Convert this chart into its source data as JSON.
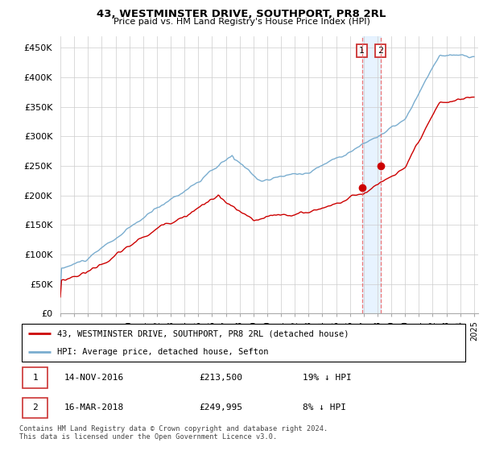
{
  "title": "43, WESTMINSTER DRIVE, SOUTHPORT, PR8 2RL",
  "subtitle": "Price paid vs. HM Land Registry's House Price Index (HPI)",
  "ylabel_ticks": [
    "£0",
    "£50K",
    "£100K",
    "£150K",
    "£200K",
    "£250K",
    "£300K",
    "£350K",
    "£400K",
    "£450K"
  ],
  "ytick_values": [
    0,
    50000,
    100000,
    150000,
    200000,
    250000,
    300000,
    350000,
    400000,
    450000
  ],
  "ylim": [
    0,
    470000
  ],
  "xlim_start": 1995.0,
  "xlim_end": 2025.3,
  "legend1": "43, WESTMINSTER DRIVE, SOUTHPORT, PR8 2RL (detached house)",
  "legend2": "HPI: Average price, detached house, Sefton",
  "red_color": "#cc0000",
  "blue_color": "#7AADCF",
  "marker1_date": 2016.87,
  "marker1_value": 213500,
  "marker2_date": 2018.21,
  "marker2_value": 249995,
  "table_rows": [
    {
      "num": "1",
      "date": "14-NOV-2016",
      "price": "£213,500",
      "hpi": "19% ↓ HPI"
    },
    {
      "num": "2",
      "date": "16-MAR-2018",
      "price": "£249,995",
      "hpi": "8% ↓ HPI"
    }
  ],
  "footnote": "Contains HM Land Registry data © Crown copyright and database right 2024.\nThis data is licensed under the Open Government Licence v3.0.",
  "background_color": "#ffffff",
  "grid_color": "#cccccc"
}
